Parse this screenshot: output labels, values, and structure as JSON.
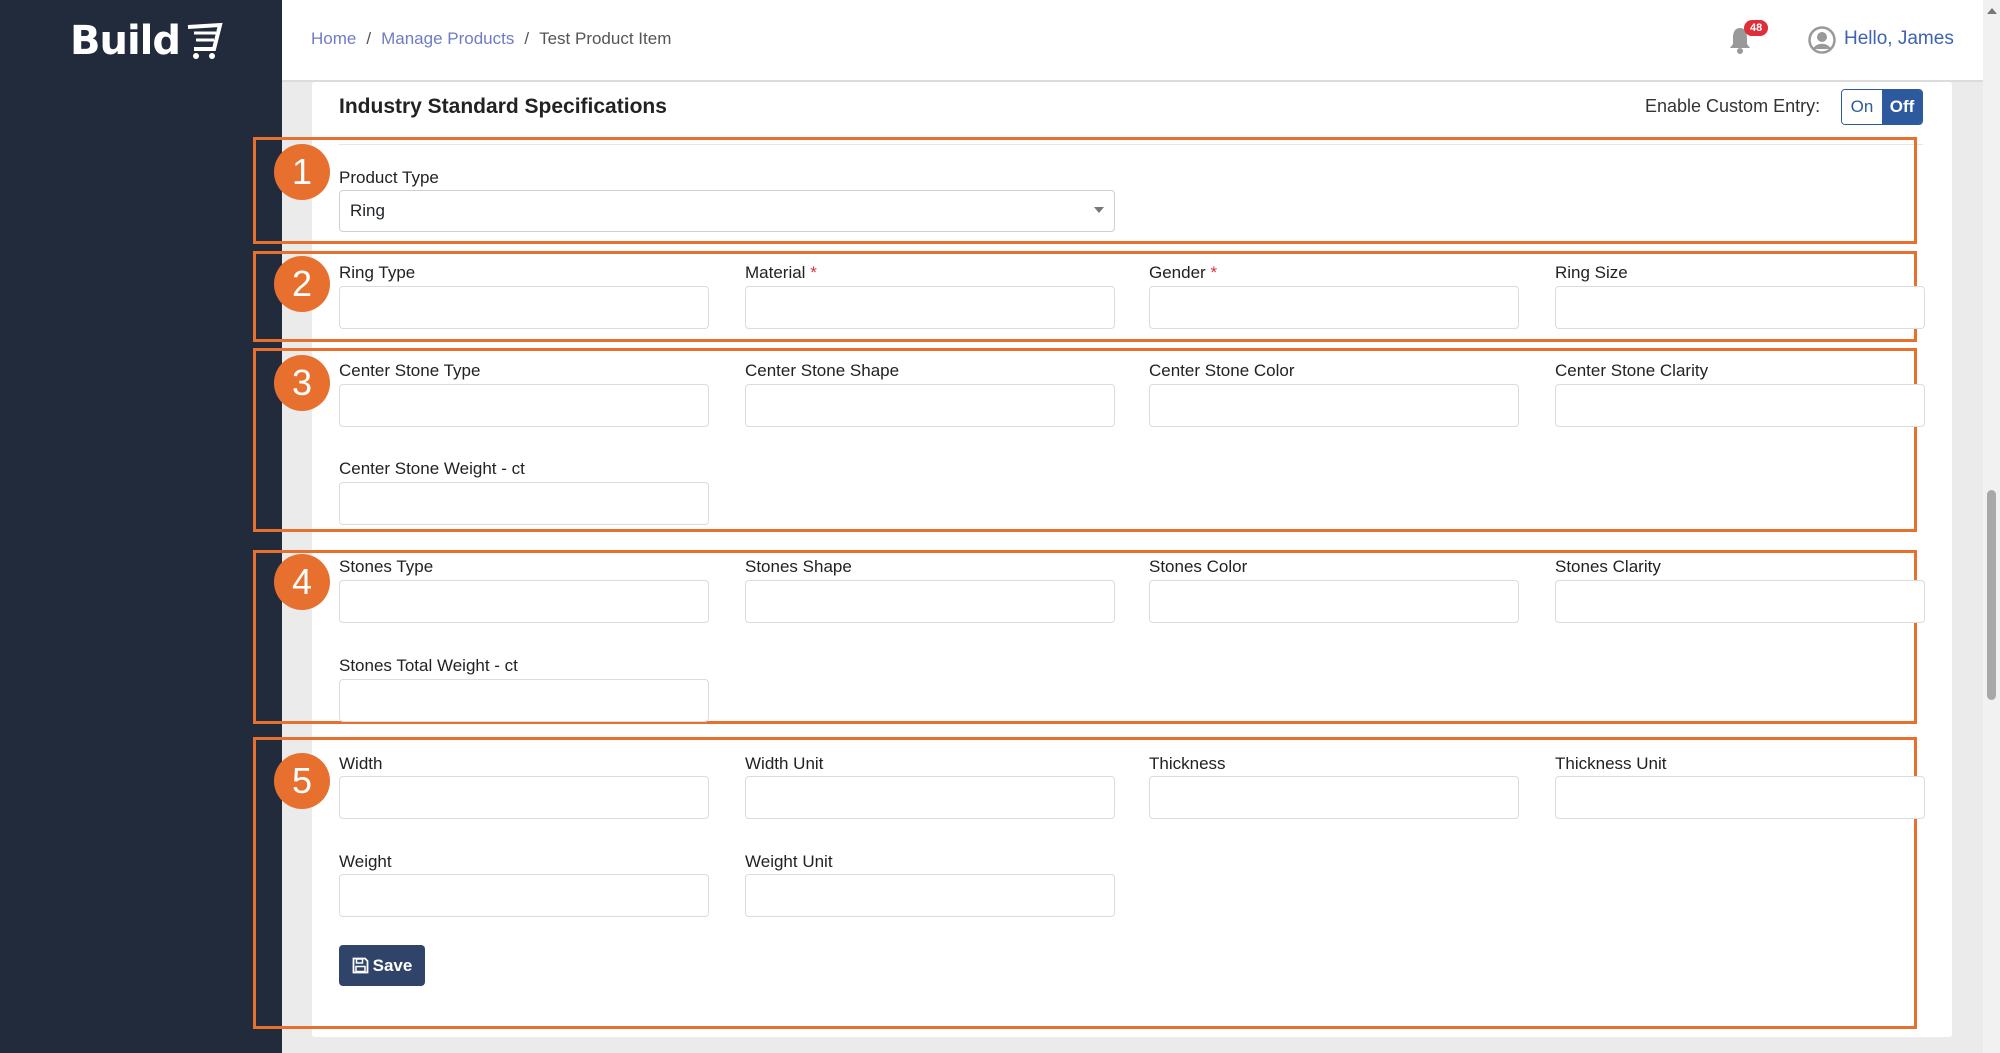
{
  "app": {
    "logo": "Build"
  },
  "breadcrumb": [
    {
      "label": "Home"
    },
    {
      "label": "Manage Products"
    },
    {
      "label": "Test Product Item"
    }
  ],
  "header": {
    "notification_count": "48",
    "greeting": "Hello, James"
  },
  "section": {
    "title": "Industry Standard Specifications",
    "custom_entry_label": "Enable Custom Entry:",
    "toggle_on": "On",
    "toggle_off": "Off",
    "toggle_state": "Off"
  },
  "annotations": [
    "1",
    "2",
    "3",
    "4",
    "5"
  ],
  "fields": {
    "product_type": {
      "label": "Product Type",
      "value": "Ring"
    },
    "ring_type": "Ring Type",
    "material": "Material",
    "gender": "Gender",
    "ring_size": "Ring Size",
    "required_mark": "*",
    "center_stone_type": "Center Stone Type",
    "center_stone_shape": "Center Stone Shape",
    "center_stone_color": "Center Stone Color",
    "center_stone_clarity": "Center Stone Clarity",
    "center_stone_weight": "Center Stone Weight - ct",
    "stones_type": "Stones Type",
    "stones_shape": "Stones Shape",
    "stones_color": "Stones Color",
    "stones_clarity": "Stones Clarity",
    "stones_total_weight": "Stones Total Weight - ct",
    "width": "Width",
    "width_unit": "Width Unit",
    "thickness": "Thickness",
    "thickness_unit": "Thickness Unit",
    "weight": "Weight",
    "weight_unit": "Weight Unit"
  },
  "save_label": "Save",
  "colors": {
    "sidebar": "#222b3c",
    "accent": "#2d5a9e",
    "annotation": "#e8702f",
    "save": "#30446a",
    "badge": "#dc2f3a"
  }
}
